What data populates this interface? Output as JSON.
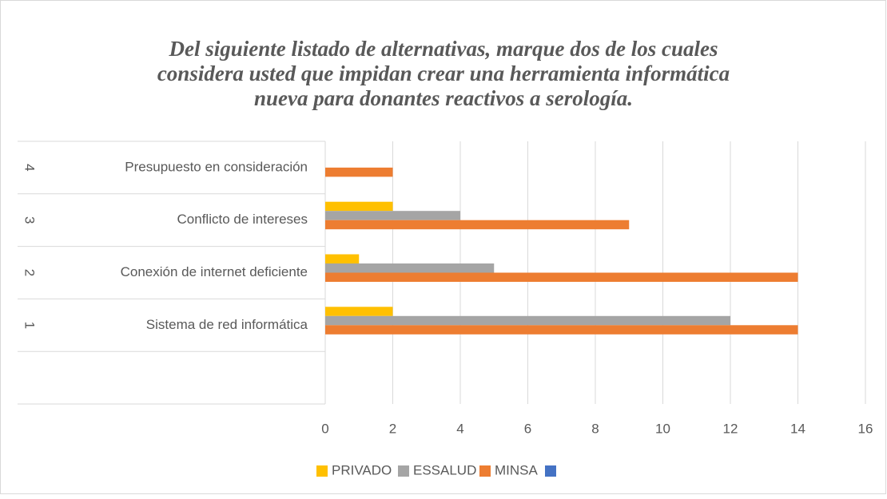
{
  "chart_data": {
    "type": "hbar",
    "title": "Del siguiente listado de alternativas, marque dos de los cuales considera usted que impidan crear una herramienta informática nueva para donantes reactivos a serología.",
    "categories": [
      null,
      "Sistema de red informática",
      "Conexión de internet deficiente",
      "Conflicto de intereses",
      "Presupuesto en consideración"
    ],
    "category_groups": [
      null,
      "1",
      "2",
      "3",
      "4"
    ],
    "series": [
      {
        "name": "PRIVADO",
        "color": "#ffc000",
        "values": [
          null,
          2,
          1,
          2,
          null
        ]
      },
      {
        "name": "ESSALUD",
        "color": "#a5a5a5",
        "values": [
          null,
          12,
          5,
          4,
          null
        ]
      },
      {
        "name": "MINSA",
        "color": "#ed7d31",
        "values": [
          null,
          14,
          14,
          9,
          2
        ]
      },
      {
        "name": null,
        "color": "#4472c4",
        "values": [
          null,
          null,
          null,
          null,
          null
        ]
      }
    ],
    "xlim": [
      0,
      16
    ],
    "xticks": [
      0,
      2,
      4,
      6,
      8,
      10,
      12,
      14,
      16
    ],
    "grid": true,
    "legend": "bottom"
  }
}
